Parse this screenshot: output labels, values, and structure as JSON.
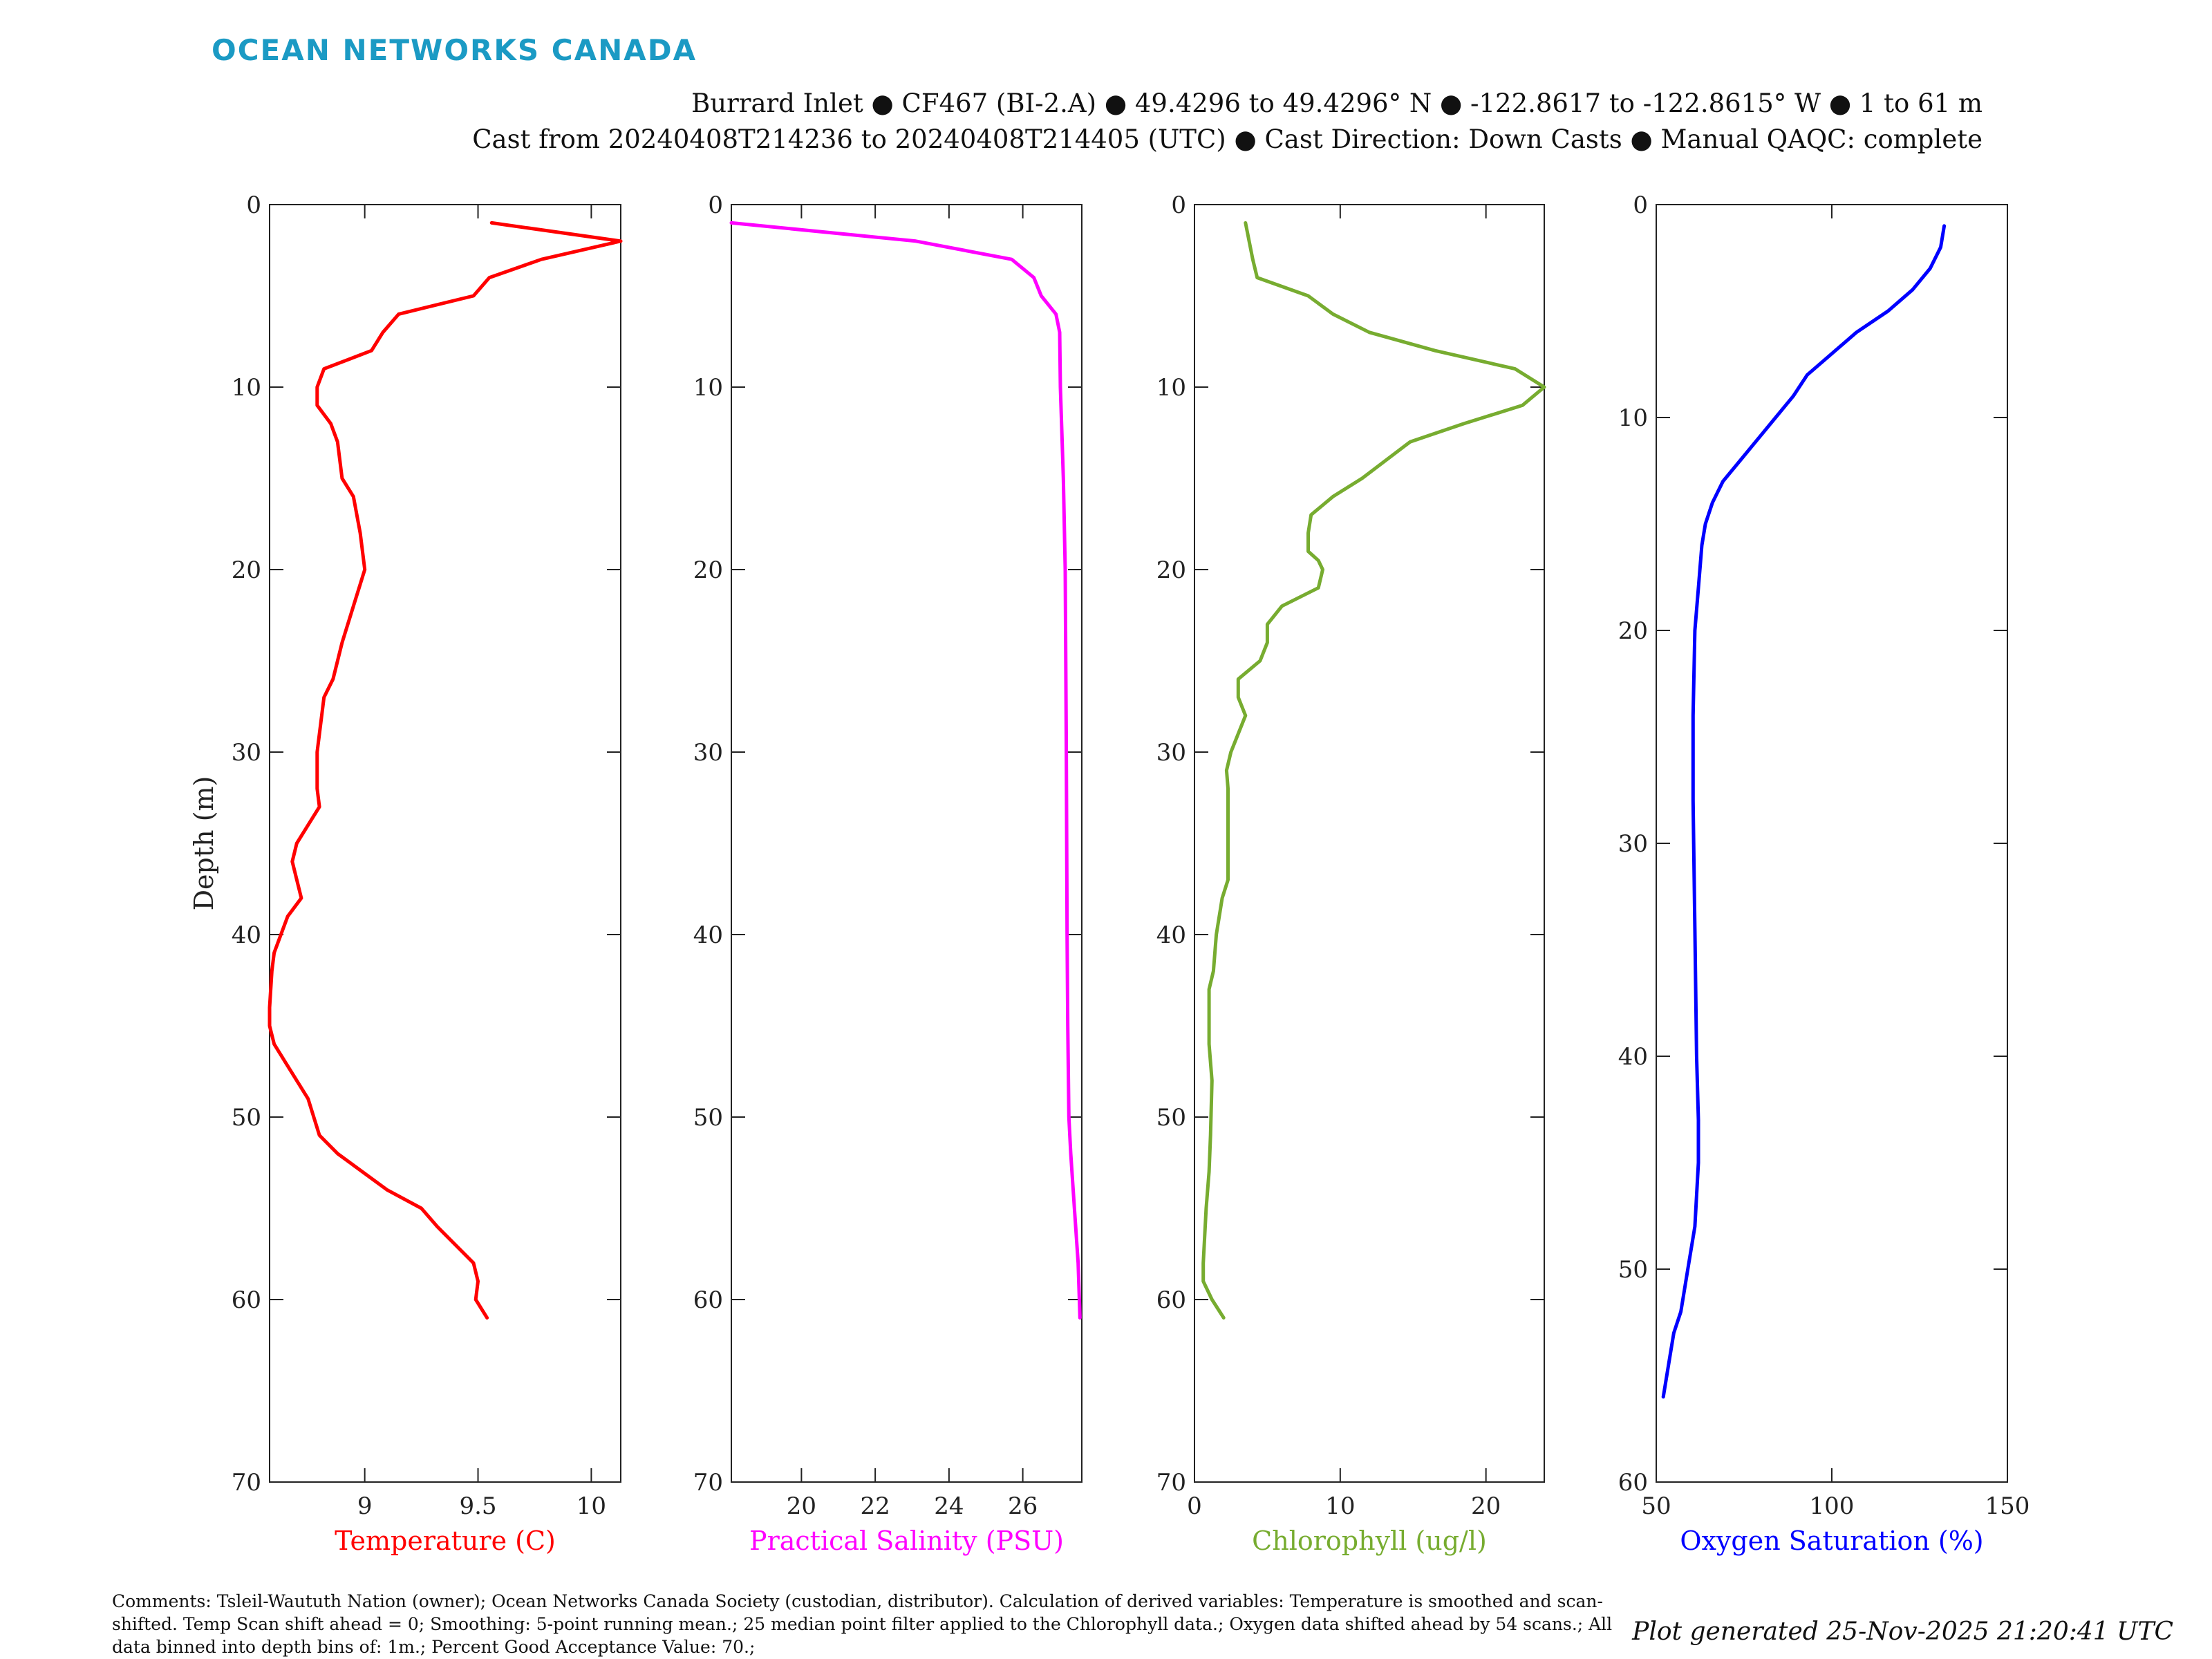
{
  "brand": "OCEAN NETWORKS CANADA",
  "header": {
    "line1": "Burrard Inlet ● CF467 (BI-2.A) ● 49.4296 to 49.4296° N ● -122.8617 to -122.8615° W ● 1 to 61 m",
    "line2": "Cast from 20240408T214236 to 20240408T214405 (UTC) ● Cast Direction: Down Casts ● Manual QAQC: complete"
  },
  "comments": "Comments: Tsleil-Waututh Nation (owner); Ocean Networks Canada Society (custodian, distributor). Calculation of derived variables: Temperature is smoothed and scan-shifted. Temp Scan shift ahead = 0; Smoothing: 5-point running mean.; 25 median point filter applied to the Chlorophyll data.; Oxygen data shifted ahead by 54 scans.; All data binned into depth bins of: 1m.; Percent Good Acceptance Value: 70.;",
  "generated": "Plot generated 25-Nov-2025 21:20:41 UTC",
  "colors": {
    "temperature": "#ff0000",
    "salinity": "#ff00ff",
    "chlorophyll": "#77ac30",
    "oxygen": "#0000ff",
    "brand": "#1b9ac4"
  },
  "chart_data": [
    {
      "type": "line",
      "xlabel": "Temperature (C)",
      "ylabel": "Depth (m)",
      "xlim": [
        8.58,
        10.13
      ],
      "ylim": [
        0,
        70
      ],
      "y_reversed": true,
      "xticks": [
        9,
        9.5,
        10
      ],
      "yticks": [
        0,
        10,
        20,
        30,
        40,
        50,
        60,
        70
      ],
      "color": "#ff0000",
      "series": [
        {
          "x": [
            9.56,
            10.13,
            9.78,
            9.55,
            9.48,
            9.15,
            9.08,
            9.03,
            8.82,
            8.79,
            8.79,
            8.85,
            8.88,
            8.9,
            8.95,
            8.98,
            8.99,
            9.0,
            8.95,
            8.9,
            8.86,
            8.82,
            8.8,
            8.79,
            8.79,
            8.79,
            8.8,
            8.75,
            8.7,
            8.68,
            8.72,
            8.66,
            8.63,
            8.6,
            8.59,
            8.58,
            8.58,
            8.6,
            8.65,
            8.7,
            8.75,
            8.8,
            8.88,
            9.1,
            9.25,
            9.32,
            9.4,
            9.48,
            9.5,
            9.49,
            9.54
          ],
          "y": [
            1,
            2,
            3,
            4,
            5,
            6,
            7,
            8,
            9,
            10,
            11,
            12,
            13,
            15,
            16,
            18,
            19,
            20,
            22,
            24,
            26,
            27,
            29,
            30,
            31,
            32,
            33,
            34,
            35,
            36,
            38,
            39,
            40,
            41,
            42,
            44,
            45,
            46,
            47,
            48,
            49,
            51,
            52,
            54,
            55,
            56,
            57,
            58,
            59,
            60,
            61
          ]
        }
      ]
    },
    {
      "type": "line",
      "xlabel": "Practical Salinity (PSU)",
      "ylabel": "",
      "xlim": [
        18.1,
        27.6
      ],
      "ylim": [
        0,
        70
      ],
      "y_reversed": true,
      "xticks": [
        20,
        22,
        24,
        26
      ],
      "yticks": [
        0,
        10,
        20,
        30,
        40,
        50,
        60,
        70
      ],
      "color": "#ff00ff",
      "series": [
        {
          "x": [
            18.1,
            23.1,
            25.7,
            26.3,
            26.5,
            26.9,
            27.0,
            27.02,
            27.1,
            27.15,
            27.18,
            27.2,
            27.22,
            27.25,
            27.3,
            27.4,
            27.5,
            27.55
          ],
          "y": [
            1,
            2,
            3,
            4,
            5,
            6,
            7,
            10,
            15,
            20,
            30,
            40,
            45,
            50,
            52,
            55,
            58,
            61
          ]
        }
      ]
    },
    {
      "type": "line",
      "xlabel": "Chlorophyll (ug/l)",
      "ylabel": "",
      "xlim": [
        0,
        24
      ],
      "ylim": [
        0,
        70
      ],
      "y_reversed": true,
      "xticks": [
        0,
        10,
        20
      ],
      "yticks": [
        0,
        10,
        20,
        30,
        40,
        50,
        60,
        70
      ],
      "color": "#77ac30",
      "series": [
        {
          "x": [
            3.5,
            4.0,
            4.3,
            7.8,
            9.5,
            12.0,
            16.5,
            22.0,
            24.0,
            22.5,
            18.5,
            14.8,
            11.5,
            9.5,
            8.0,
            7.8,
            7.8,
            8.5,
            8.8,
            8.5,
            6.0,
            5.0,
            5.0,
            4.5,
            3.0,
            3.0,
            3.5,
            2.5,
            2.2,
            2.3,
            2.3,
            2.3,
            1.9,
            1.5,
            1.3,
            1.0,
            1.0,
            1.2,
            1.1,
            1.0,
            0.8,
            0.6,
            0.6,
            1.2,
            2.0
          ],
          "y": [
            1,
            3,
            4,
            5,
            6,
            7,
            8,
            9,
            10,
            11,
            12,
            13,
            15,
            16,
            17,
            18,
            19,
            19.5,
            20,
            21,
            22,
            23,
            24,
            25,
            26,
            27,
            28,
            30,
            31,
            32,
            33,
            37,
            38,
            40,
            42,
            43,
            46,
            48,
            51,
            53,
            55,
            58,
            59,
            60,
            61
          ]
        }
      ]
    },
    {
      "type": "line",
      "xlabel": "Oxygen Saturation (%)",
      "ylabel": "",
      "xlim": [
        50,
        150
      ],
      "ylim": [
        0,
        60
      ],
      "y_reversed": true,
      "xticks": [
        50,
        100,
        150
      ],
      "yticks": [
        0,
        10,
        20,
        30,
        40,
        50,
        60
      ],
      "color": "#0000ff",
      "series": [
        {
          "x": [
            132,
            131,
            128,
            123,
            116,
            107,
            100,
            93,
            89,
            84,
            79,
            74,
            69,
            66,
            64,
            63,
            62,
            61,
            60.5,
            60.5,
            61,
            61.5,
            62,
            62,
            61,
            59,
            57,
            55,
            54,
            52
          ],
          "y": [
            1,
            2,
            3,
            4,
            5,
            6,
            7,
            8,
            9,
            10,
            11,
            12,
            13,
            14,
            15,
            16,
            18,
            20,
            24,
            28,
            34,
            40,
            43,
            45,
            48,
            50,
            52,
            53,
            54,
            56
          ]
        }
      ]
    }
  ]
}
